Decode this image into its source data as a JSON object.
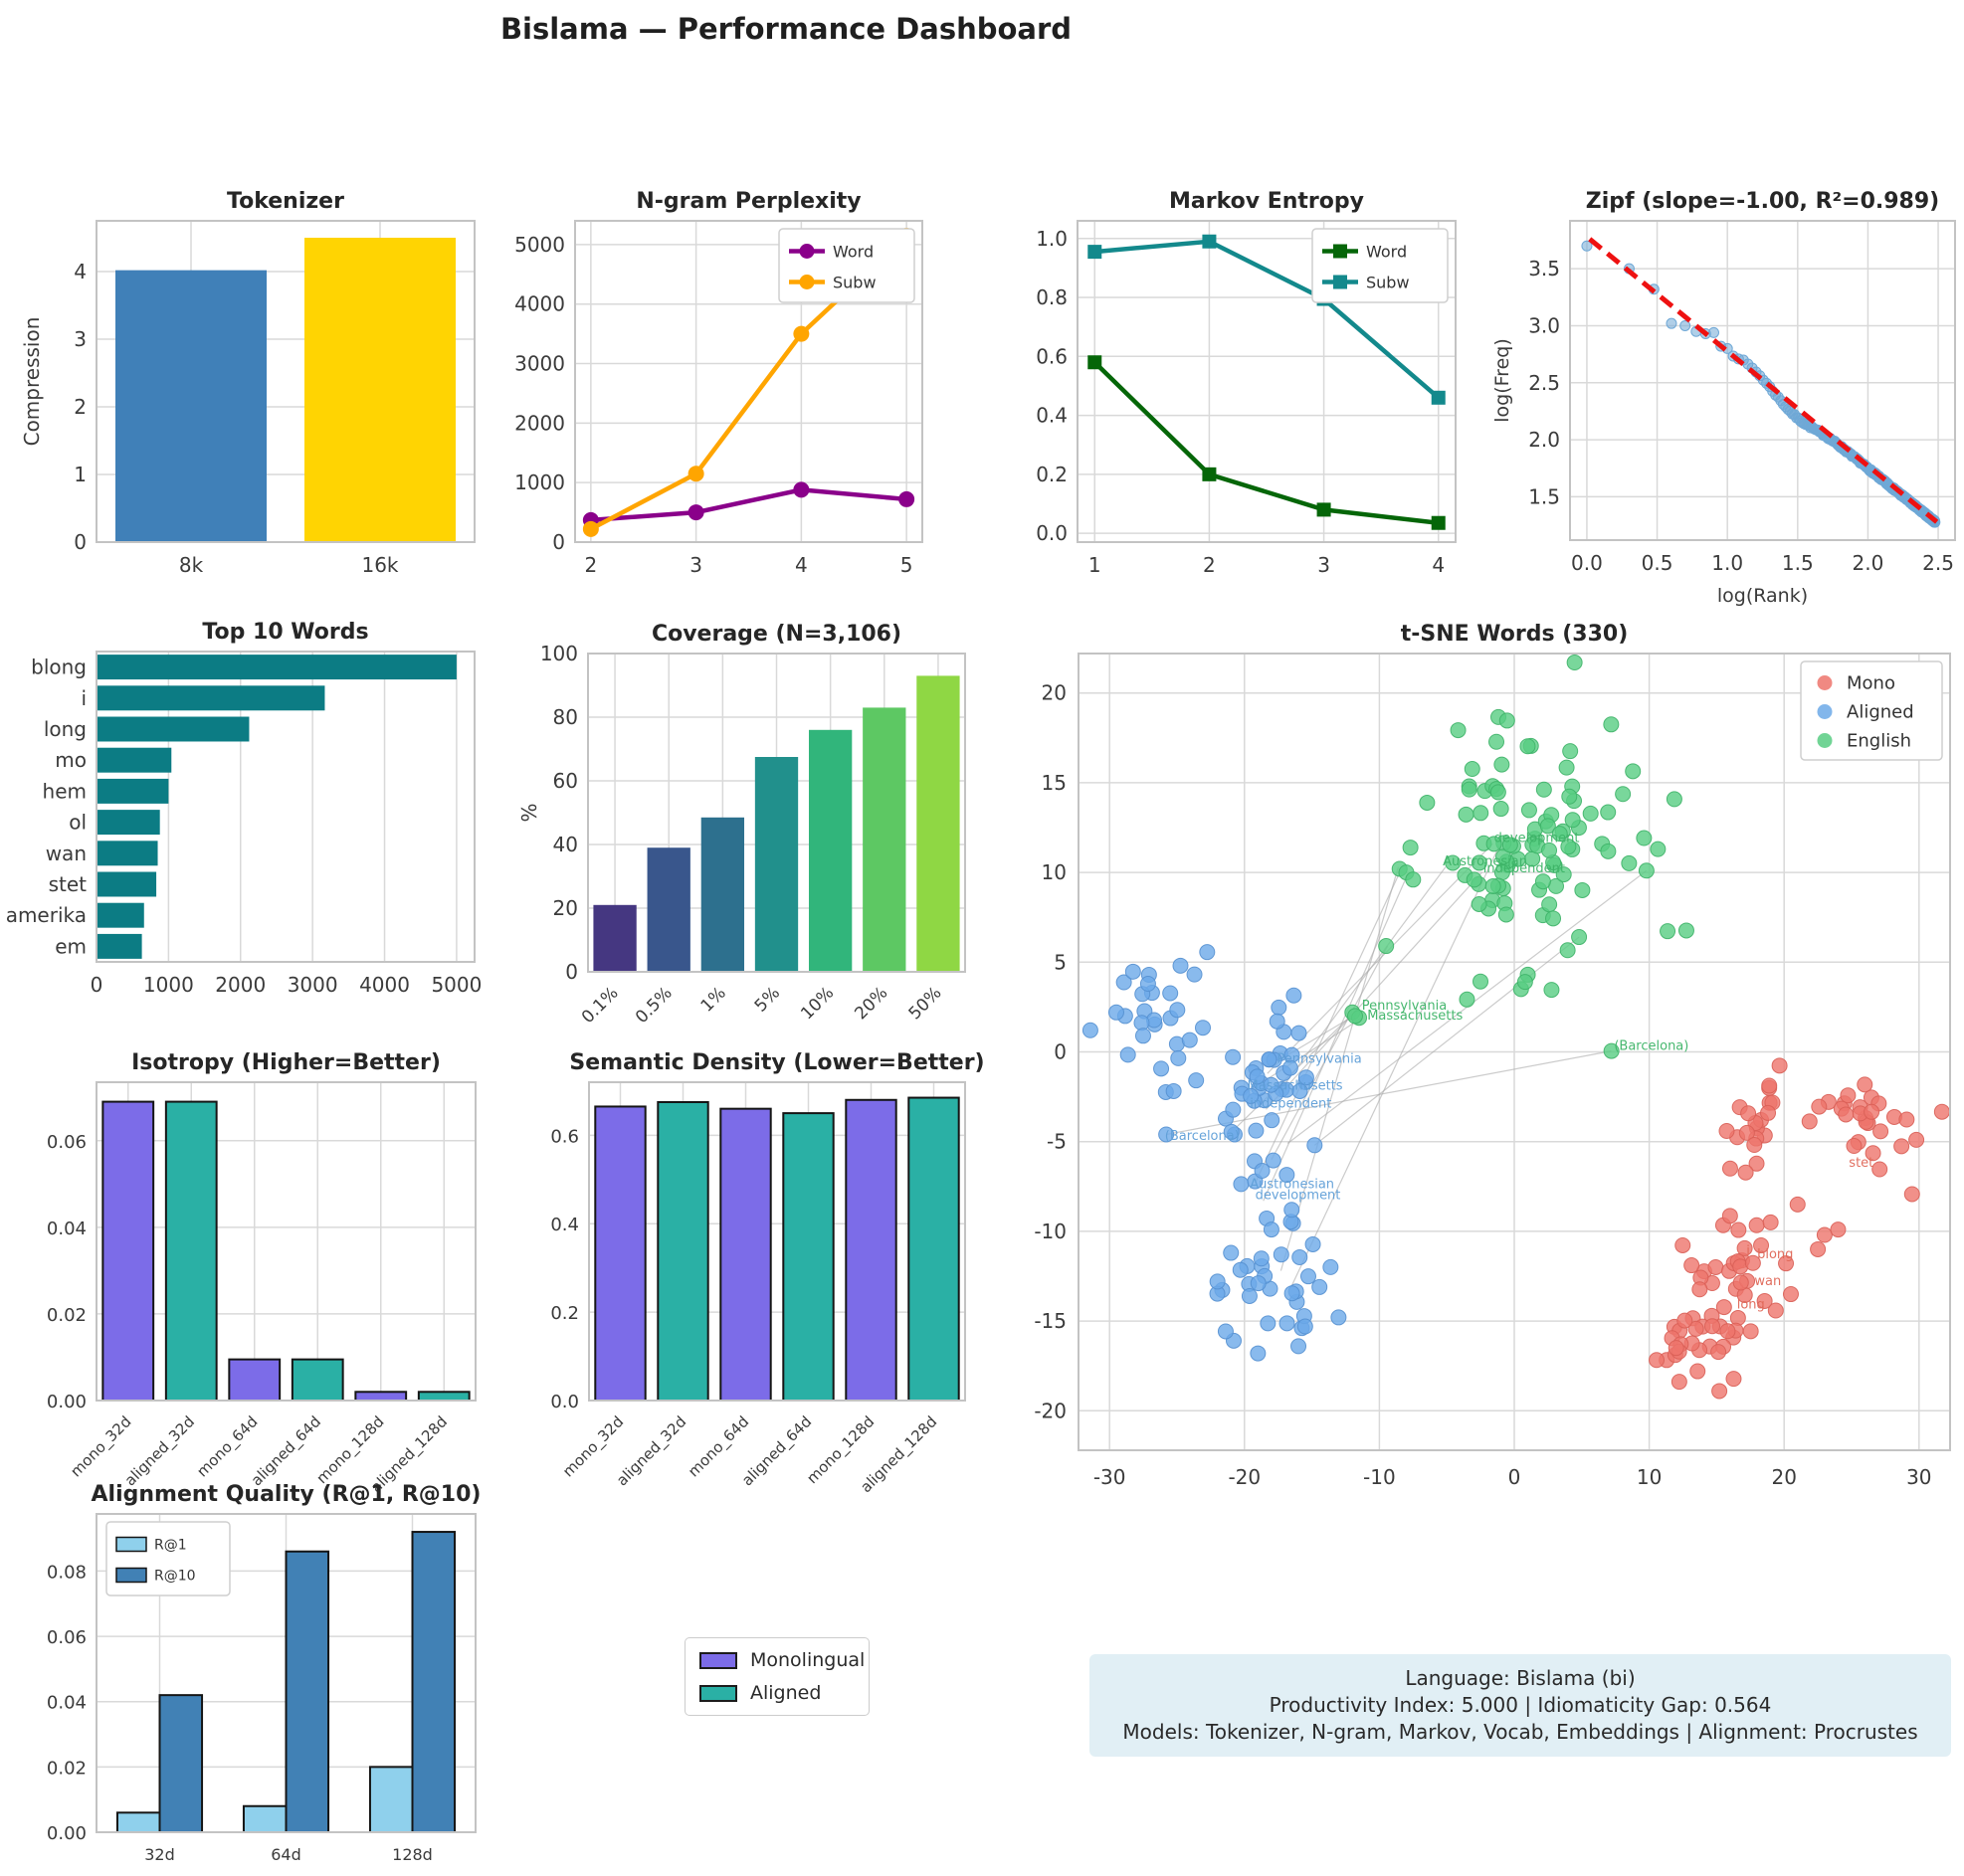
{
  "page_title": "Bislama — Performance Dashboard",
  "info_box": {
    "lines": [
      "Language: Bislama (bi)",
      "Productivity Index: 5.000  |  Idiomaticity Gap: 0.564",
      "Models: Tokenizer, N-gram, Markov, Vocab, Embeddings  |  Alignment: Procrustes"
    ]
  },
  "standalone_legend": {
    "items": [
      {
        "label": "Monolingual",
        "color": "#7c6ce8"
      },
      {
        "label": "Aligned",
        "color": "#2ab0a5"
      }
    ]
  },
  "chart_data": [
    {
      "id": "tokenizer",
      "type": "bar",
      "title": "Tokenizer",
      "ylabel": "Compression",
      "categories": [
        "8k",
        "16k"
      ],
      "values": [
        4.02,
        4.5
      ],
      "bar_colors": [
        "#4080b8",
        "#ffd402"
      ],
      "ylim": [
        0,
        4.75
      ],
      "ytick_values": [
        0,
        1,
        2,
        3,
        4
      ],
      "ytick_labels": [
        "0",
        "1",
        "2",
        "3",
        "4"
      ]
    },
    {
      "id": "ngram",
      "type": "line",
      "title": "N-gram Perplexity",
      "x": [
        2,
        3,
        4,
        5
      ],
      "xlim": [
        1.85,
        5.15
      ],
      "xtick_values": [
        2,
        3,
        4,
        5
      ],
      "xtick_labels": [
        "2",
        "3",
        "4",
        "5"
      ],
      "ylim": [
        0,
        5400
      ],
      "ytick_values": [
        0,
        1000,
        2000,
        3000,
        4000,
        5000
      ],
      "ytick_labels": [
        "0",
        "1000",
        "2000",
        "3000",
        "4000",
        "5000"
      ],
      "series": [
        {
          "name": "Word",
          "color": "#8a008a",
          "marker": "circle",
          "values": [
            370,
            500,
            880,
            720
          ]
        },
        {
          "name": "Subw",
          "color": "#ffa500",
          "marker": "circle",
          "values": [
            220,
            1150,
            3500,
            5150
          ]
        }
      ],
      "legend_pos": "top-right"
    },
    {
      "id": "markov",
      "type": "line",
      "title": "Markov Entropy",
      "x": [
        1,
        2,
        3,
        4
      ],
      "xlim": [
        0.85,
        4.15
      ],
      "xtick_values": [
        1,
        2,
        3,
        4
      ],
      "xtick_labels": [
        "1",
        "2",
        "3",
        "4"
      ],
      "ylim": [
        -0.03,
        1.06
      ],
      "ytick_values": [
        0,
        0.2,
        0.4,
        0.6,
        0.8,
        1.0
      ],
      "ytick_labels": [
        "0.0",
        "0.2",
        "0.4",
        "0.6",
        "0.8",
        "1.0"
      ],
      "series": [
        {
          "name": "Word",
          "color": "#056608",
          "marker": "square",
          "values": [
            0.58,
            0.2,
            0.08,
            0.035
          ]
        },
        {
          "name": "Subw",
          "color": "#13898c",
          "marker": "square",
          "values": [
            0.955,
            0.99,
            0.795,
            0.46
          ]
        }
      ],
      "legend_pos": "top-right"
    },
    {
      "id": "zipf",
      "type": "zipf",
      "title": "Zipf (slope=-1.00, R²=0.989)",
      "xlabel": "log(Rank)",
      "ylabel": "log(Freq)",
      "xlim": [
        -0.12,
        2.62
      ],
      "ylim": [
        1.12,
        3.92
      ],
      "xtick_values": [
        0,
        0.5,
        1,
        1.5,
        2,
        2.5
      ],
      "xtick_labels": [
        "0.0",
        "0.5",
        "1.0",
        "1.5",
        "2.0",
        "2.5"
      ],
      "ytick_values": [
        1.5,
        2,
        2.5,
        3,
        3.5
      ],
      "ytick_labels": [
        "1.5",
        "2.0",
        "2.5",
        "3.0",
        "3.5"
      ],
      "point_color": "#6fa8d6",
      "head_points": [
        [
          0,
          3.7
        ],
        [
          0.301,
          3.5
        ],
        [
          0.477,
          3.32
        ],
        [
          0.602,
          3.02
        ],
        [
          0.699,
          3.0
        ],
        [
          0.778,
          2.95
        ],
        [
          0.845,
          2.93
        ],
        [
          0.903,
          2.94
        ],
        [
          0.954,
          2.82
        ],
        [
          1.0,
          2.8
        ]
      ],
      "generator": {
        "ranks": 300,
        "intercept": 3.72,
        "slope": -0.985,
        "seed": 7
      },
      "trend": {
        "x0": 0.02,
        "y0": 3.76,
        "x1": 2.49,
        "y1": 1.28,
        "color": "#ee1111"
      }
    },
    {
      "id": "top10",
      "type": "hbar",
      "title": "Top 10 Words",
      "categories": [
        "blong",
        "i",
        "long",
        "mo",
        "hem",
        "ol",
        "wan",
        "stet",
        "amerika",
        "em"
      ],
      "values": [
        5000,
        3170,
        2120,
        1040,
        1000,
        880,
        850,
        830,
        660,
        630
      ],
      "bar_color": "#0c7c84",
      "xlim": [
        0,
        5250
      ],
      "xtick_values": [
        0,
        1000,
        2000,
        3000,
        4000,
        5000
      ],
      "xtick_labels": [
        "0",
        "1000",
        "2000",
        "3000",
        "4000",
        "5000"
      ]
    },
    {
      "id": "coverage",
      "type": "bar",
      "title": "Coverage (N=3,106)",
      "ylabel": "%",
      "categories": [
        "0.1%",
        "0.5%",
        "1%",
        "5%",
        "10%",
        "20%",
        "50%"
      ],
      "values": [
        21,
        39,
        48.5,
        67.5,
        76,
        83,
        93
      ],
      "bar_colors": [
        "#453781",
        "#39568C",
        "#2D708E",
        "#21908C",
        "#31B57B",
        "#5DC863",
        "#8FD744"
      ],
      "ylim": [
        0,
        100
      ],
      "ytick_values": [
        0,
        20,
        40,
        60,
        80,
        100
      ],
      "ytick_labels": [
        "0",
        "20",
        "40",
        "60",
        "80",
        "100"
      ],
      "xtick_rotation": 45
    },
    {
      "id": "tsne",
      "type": "tsne",
      "title": "t-SNE Words (330)",
      "xlim": [
        -32.3,
        32.3
      ],
      "ylim": [
        -22.2,
        22.2
      ],
      "xtick_values": [
        -30,
        -20,
        -10,
        0,
        10,
        20,
        30
      ],
      "xtick_labels": [
        "-30",
        "-20",
        "-10",
        "0",
        "10",
        "20",
        "30"
      ],
      "ytick_values": [
        -20,
        -15,
        -10,
        -5,
        0,
        5,
        10,
        15,
        20
      ],
      "ytick_labels": [
        "-20",
        "-15",
        "-10",
        "-5",
        "0",
        "5",
        "10",
        "15",
        "20"
      ],
      "seed": 42,
      "legend": [
        {
          "label": "Mono",
          "color": "#ed746c"
        },
        {
          "label": "Aligned",
          "color": "#6ca9e8"
        },
        {
          "label": "English",
          "color": "#58cd82"
        }
      ],
      "clusters": [
        {
          "name": "Mono",
          "color": "#ed746c",
          "edge": "#d95f57",
          "blobs": [
            [
              17.8,
              -3.5,
              1.2,
              1.2,
              18
            ],
            [
              26,
              -4.3,
              1.9,
              1.5,
              26
            ],
            [
              16.5,
              -12,
              1.6,
              1.8,
              30
            ],
            [
              14.3,
              -16.3,
              1.6,
              1.2,
              26
            ]
          ],
          "extra": [
            [
              29.8,
              -4.9
            ],
            [
              22.5,
              -11
            ],
            [
              23,
              -10.2
            ],
            [
              20.5,
              -13.5
            ],
            [
              12,
              -16.5
            ],
            [
              15.2,
              -18.9
            ],
            [
              21,
              -8.5
            ],
            [
              19,
              -9.5
            ],
            [
              24,
              -9.9
            ],
            [
              16,
              -6.5
            ]
          ]
        },
        {
          "name": "Aligned",
          "color": "#6ca9e8",
          "edge": "#5590d0",
          "blobs": [
            [
              -26,
              2,
              1.8,
              2.2,
              28
            ],
            [
              -18,
              -1.5,
              1.6,
              1.8,
              30
            ],
            [
              -19.5,
              -4.5,
              1.5,
              1.5,
              12
            ],
            [
              -17.5,
              -13,
              1.8,
              2,
              30
            ]
          ],
          "extra": [
            [
              -25.8,
              -4.6
            ],
            [
              -29.5,
              2.2
            ],
            [
              -14.8,
              -5.2
            ],
            [
              -16.5,
              -8.8
            ],
            [
              -18,
              -9.9
            ],
            [
              -21,
              -11.2
            ],
            [
              -19,
              -16.8
            ],
            [
              -15.5,
              -15.3
            ],
            [
              -16,
              -16.4
            ],
            [
              -22,
              -12.8
            ]
          ]
        },
        {
          "name": "English",
          "color": "#58cd82",
          "edge": "#3eb368",
          "blobs": [
            [
              2,
              12.5,
              4.2,
              3.6,
              92
            ]
          ],
          "extra": [
            [
              -8.5,
              10.2
            ],
            [
              -8,
              10
            ],
            [
              -7.5,
              9.6
            ],
            [
              -12,
              2.2
            ],
            [
              -11.5,
              1.9
            ],
            [
              -11.8,
              2.0
            ],
            [
              7.2,
              0.05
            ],
            [
              9.8,
              10.1
            ],
            [
              -9.5,
              5.9
            ],
            [
              0.5,
              3.5
            ],
            [
              1,
              4.3
            ],
            [
              0.8,
              3.9
            ],
            [
              4.8,
              6.4
            ]
          ]
        }
      ],
      "pair_lines": [
        [
          -18.3,
          -1.2,
          -1.6,
          11.6
        ],
        [
          -17.6,
          -2.4,
          -5.1,
          10.3
        ],
        [
          -18.4,
          -3.2,
          -2.4,
          10.0
        ],
        [
          -19.2,
          -7.3,
          -8.4,
          10.15
        ],
        [
          -18.6,
          -8.3,
          -7.9,
          9.9
        ],
        [
          -25.8,
          -4.6,
          7.2,
          0.05
        ],
        [
          -17.3,
          -0.4,
          -11.8,
          2.05
        ],
        [
          -19.7,
          -2.2,
          -11.4,
          1.85
        ],
        [
          -16.8,
          -5.1,
          9.8,
          10.1
        ],
        [
          -14.8,
          -5.2,
          4.8,
          6.4
        ],
        [
          -17.3,
          -12.2,
          -8.6,
          10.3
        ],
        [
          -16.6,
          -13.2,
          -1.1,
          11.5
        ],
        [
          -20.6,
          -4.2,
          -12,
          2.1
        ],
        [
          -18.0,
          -6.0,
          -9.4,
          5.9
        ]
      ],
      "annotations": [
        {
          "text": "development",
          "x": -1.5,
          "y": 11.7,
          "color": "#3db467"
        },
        {
          "text": "Austronesian",
          "x": -5.3,
          "y": 10.4,
          "color": "#3db467"
        },
        {
          "text": "independent",
          "x": -2.3,
          "y": 10.0,
          "color": "#3db467"
        },
        {
          "text": "Pennsylvania",
          "x": -11.3,
          "y": 2.35,
          "color": "#3db467"
        },
        {
          "text": "Massachusetts",
          "x": -10.9,
          "y": 1.8,
          "color": "#3db467"
        },
        {
          "text": "(Barcelona)",
          "x": 7.4,
          "y": 0.1,
          "color": "#3db467"
        },
        {
          "text": "Pennsylvania",
          "x": -17.6,
          "y": -0.6,
          "color": "#5f9fd8"
        },
        {
          "text": "Massachusetts",
          "x": -19.8,
          "y": -2.1,
          "color": "#5f9fd8"
        },
        {
          "text": "independent",
          "x": -19.6,
          "y": -3.1,
          "color": "#5f9fd8"
        },
        {
          "text": "(Barcelona)",
          "x": -25.9,
          "y": -4.9,
          "color": "#5f9fd8"
        },
        {
          "text": "Austronesian",
          "x": -19.6,
          "y": -7.6,
          "color": "#5f9fd8"
        },
        {
          "text": "development",
          "x": -19.2,
          "y": -8.2,
          "color": "#5f9fd8"
        },
        {
          "text": "i",
          "x": 17.2,
          "y": -11.3,
          "color": "#e06858"
        },
        {
          "text": "blong",
          "x": 18.0,
          "y": -11.5,
          "color": "#e06858"
        },
        {
          "text": "wan",
          "x": 17.8,
          "y": -13.0,
          "color": "#e06858"
        },
        {
          "text": "long",
          "x": 16.5,
          "y": -14.3,
          "color": "#e06858"
        },
        {
          "text": "stet",
          "x": 24.8,
          "y": -6.4,
          "color": "#e06858"
        }
      ]
    },
    {
      "id": "isotropy",
      "type": "bar",
      "title": "Isotropy (Higher=Better)",
      "categories": [
        "mono_32d",
        "aligned_32d",
        "mono_64d",
        "aligned_64d",
        "mono_128d",
        "aligned_128d"
      ],
      "values": [
        0.069,
        0.069,
        0.0095,
        0.0095,
        0.002,
        0.002
      ],
      "bar_colors": [
        "#7c6ce8",
        "#2ab0a5",
        "#7c6ce8",
        "#2ab0a5",
        "#7c6ce8",
        "#2ab0a5"
      ],
      "bar_edge": "#151515",
      "ylim": [
        0,
        0.0735
      ],
      "ytick_values": [
        0,
        0.02,
        0.04,
        0.06
      ],
      "ytick_labels": [
        "0.00",
        "0.02",
        "0.04",
        "0.06"
      ],
      "xtick_rotation": 45
    },
    {
      "id": "semdens",
      "type": "bar",
      "title": "Semantic Density (Lower=Better)",
      "categories": [
        "mono_32d",
        "aligned_32d",
        "mono_64d",
        "aligned_64d",
        "mono_128d",
        "aligned_128d"
      ],
      "values": [
        0.665,
        0.675,
        0.66,
        0.65,
        0.68,
        0.685
      ],
      "bar_colors": [
        "#7c6ce8",
        "#2ab0a5",
        "#7c6ce8",
        "#2ab0a5",
        "#7c6ce8",
        "#2ab0a5"
      ],
      "bar_edge": "#151515",
      "ylim": [
        0,
        0.72
      ],
      "ytick_values": [
        0,
        0.2,
        0.4,
        0.6
      ],
      "ytick_labels": [
        "0.0",
        "0.2",
        "0.4",
        "0.6"
      ],
      "xtick_rotation": 45
    },
    {
      "id": "alignq",
      "type": "grouped_bar",
      "title": "Alignment Quality (R@1, R@10)",
      "groups": [
        "32d",
        "64d",
        "128d"
      ],
      "series": [
        {
          "name": "R@1",
          "color": "#8fd0ec",
          "values": [
            0.006,
            0.008,
            0.02
          ]
        },
        {
          "name": "R@10",
          "color": "#4181b5",
          "values": [
            0.042,
            0.086,
            0.092
          ]
        }
      ],
      "bar_edge": "#151515",
      "ylim": [
        0,
        0.0975
      ],
      "ytick_values": [
        0,
        0.02,
        0.04,
        0.06,
        0.08
      ],
      "ytick_labels": [
        "0.00",
        "0.02",
        "0.04",
        "0.06",
        "0.08"
      ],
      "legend_pos": "top-left"
    }
  ]
}
